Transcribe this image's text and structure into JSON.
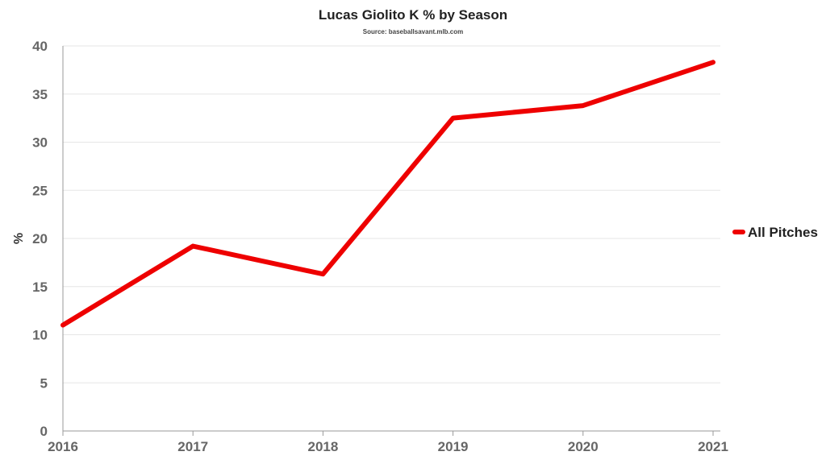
{
  "chart_data": {
    "type": "line",
    "title": "Lucas Giolito K % by Season",
    "subtitle": "Source: baseballsavant.mlb.com",
    "xlabel": "",
    "ylabel": "%",
    "x": [
      "2016",
      "2017",
      "2018",
      "2019",
      "2020",
      "2021"
    ],
    "yticks": [
      "0",
      "5",
      "10",
      "15",
      "20",
      "25",
      "30",
      "35",
      "40"
    ],
    "ylim": [
      0,
      40
    ],
    "grid": true,
    "legend_position": "right",
    "series": [
      {
        "name": "All Pitches",
        "color": "#ee0000",
        "values": [
          11.0,
          19.2,
          16.3,
          32.5,
          33.8,
          38.3
        ]
      }
    ]
  }
}
